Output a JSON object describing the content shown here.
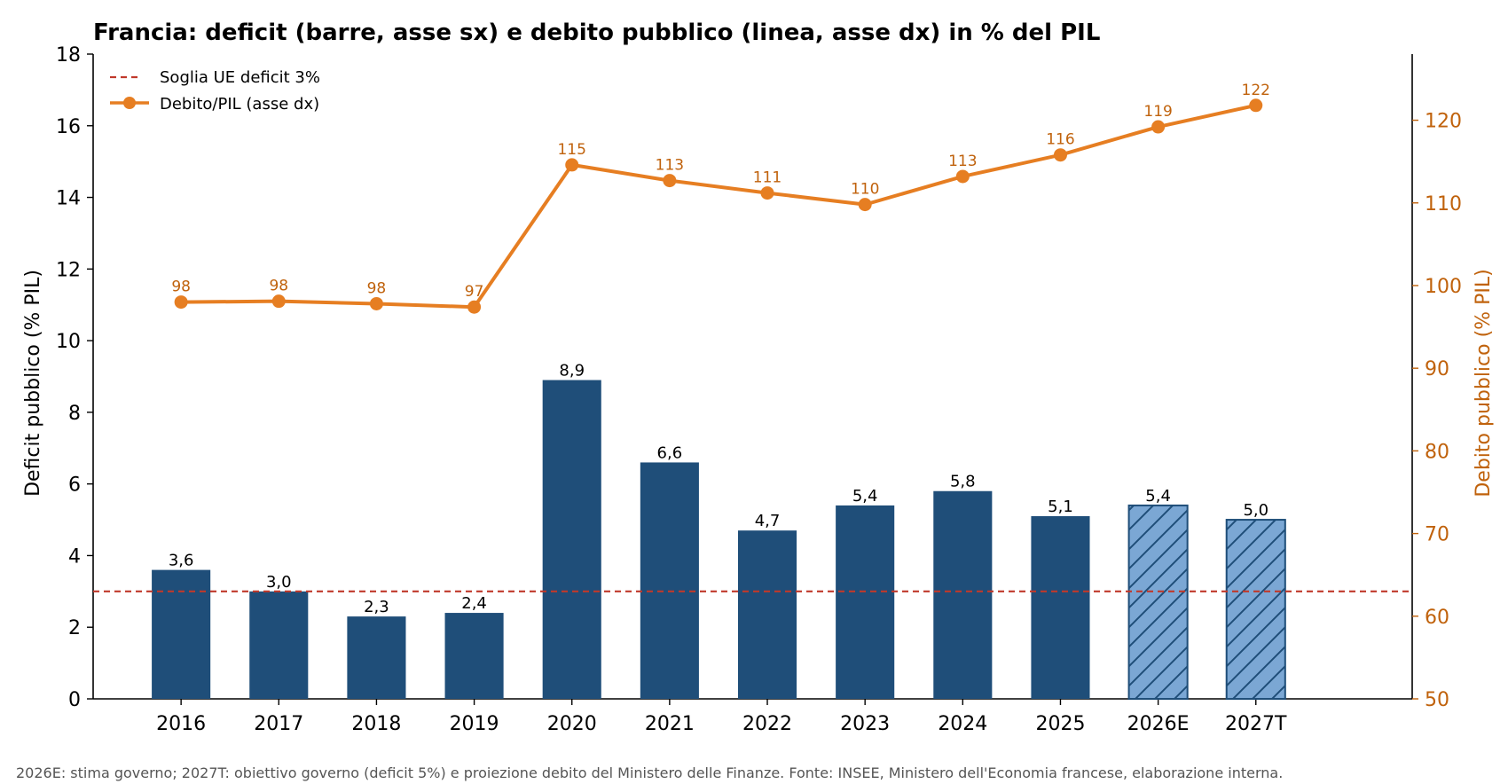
{
  "chart_data": {
    "type": "bar",
    "title": "Francia: deficit (barre, asse sx) e debito pubblico (linea, asse dx) in % del PIL",
    "categories": [
      "2016",
      "2017",
      "2018",
      "2019",
      "2020",
      "2021",
      "2022",
      "2023",
      "2024",
      "2025",
      "2026E",
      "2027T"
    ],
    "series": [
      {
        "name": "",
        "axis": "left",
        "type": "bar",
        "values": [
          3.6,
          3.0,
          2.3,
          2.4,
          8.9,
          6.6,
          4.7,
          5.4,
          5.8,
          5.1,
          5.4,
          5.0
        ],
        "labels": [
          "3,6",
          "3,0",
          "2,3",
          "2,4",
          "8,9",
          "6,6",
          "4,7",
          "5,4",
          "5,8",
          "5,1",
          "5,4",
          "5,0"
        ],
        "hatched": [
          false,
          false,
          false,
          false,
          false,
          false,
          false,
          false,
          false,
          false,
          true,
          true
        ]
      },
      {
        "name": "Debito/PIL (asse dx)",
        "axis": "right",
        "type": "line",
        "values": [
          98.0,
          98.1,
          97.8,
          97.4,
          114.6,
          112.7,
          111.2,
          109.8,
          113.2,
          115.8,
          119.2,
          121.8
        ],
        "labels": [
          "98",
          "98",
          "98",
          "97",
          "115",
          "113",
          "111",
          "110",
          "113",
          "116",
          "119",
          "122"
        ]
      }
    ],
    "reference_line": {
      "name": "Soglia UE deficit 3%",
      "value": 3
    },
    "ylabel": "Deficit pubblico (% PIL)",
    "ylabel_right": "Debito pubblico (% PIL)",
    "ylim": [
      0,
      18
    ],
    "ylim_right": [
      50,
      128
    ],
    "yticks": [
      0,
      2,
      4,
      6,
      8,
      10,
      12,
      14,
      16,
      18
    ],
    "yticks_right": [
      50,
      60,
      70,
      80,
      90,
      100,
      110,
      120
    ],
    "grid": false,
    "legend_position": "top-left",
    "colors": {
      "bar": "#1f4e79",
      "bar_hatched": "#7ba7d4",
      "line": "#e67e22",
      "right_axis": "#c0620c",
      "threshold": "#c0392b"
    }
  },
  "footnote": "2026E: stima governo; 2027T: obiettivo governo (deficit 5%) e proiezione debito del Ministero delle Finanze. Fonte: INSEE, Ministero dell'Economia francese, elaborazione interna."
}
